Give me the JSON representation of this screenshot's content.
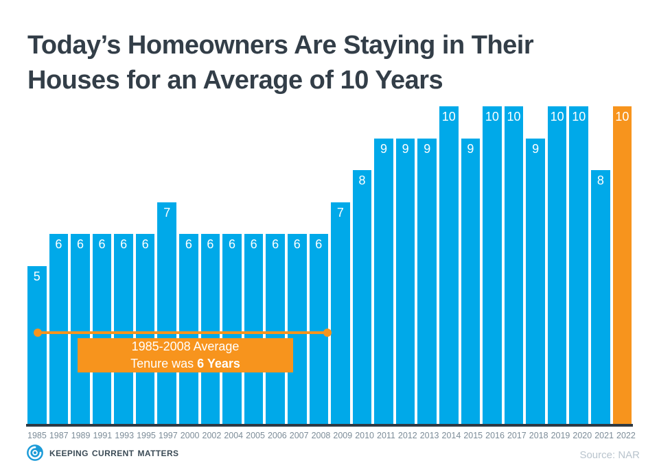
{
  "slide": {
    "title_line1": "Today’s Homeowners Are Staying in Their",
    "title_line2": "Houses for an Average of 10 Years"
  },
  "chart_data": {
    "type": "bar",
    "title": "Today’s Homeowners Are Staying in Their Houses for an Average of 10 Years",
    "categories": [
      "1985",
      "1987",
      "1989",
      "1991",
      "1993",
      "1995",
      "1997",
      "2000",
      "2002",
      "2004",
      "2005",
      "2006",
      "2007",
      "2008",
      "2009",
      "2010",
      "2011",
      "2012",
      "2013",
      "2014",
      "2015",
      "2016",
      "2017",
      "2018",
      "2019",
      "2020",
      "2021",
      "2022"
    ],
    "values": [
      5,
      6,
      6,
      6,
      6,
      6,
      7,
      6,
      6,
      6,
      6,
      6,
      6,
      6,
      7,
      8,
      9,
      9,
      9,
      10,
      9,
      10,
      10,
      9,
      10,
      10,
      8,
      10
    ],
    "xlabel": "",
    "ylabel": "",
    "ylim": [
      0,
      10
    ],
    "grid": false,
    "legend": false,
    "value_labels": true,
    "bar_color": "#00a9e9",
    "highlight_index": 27,
    "highlight_color": "#f7941d",
    "annotation": {
      "line1": "1985-2008 Average",
      "line2_regular": "Tenure was ",
      "line2_bold": "6 Years",
      "range_start": "1985",
      "range_end": "2008"
    }
  },
  "footer": {
    "brand": "Keeping Current Matters",
    "source": "Source: NAR"
  },
  "colors": {
    "blue": "#00a9e9",
    "orange": "#f7941d",
    "title": "#333e48",
    "axis": "#2e3a44",
    "tick": "#7c8c98",
    "logo_blue": "#1c9bd8"
  }
}
